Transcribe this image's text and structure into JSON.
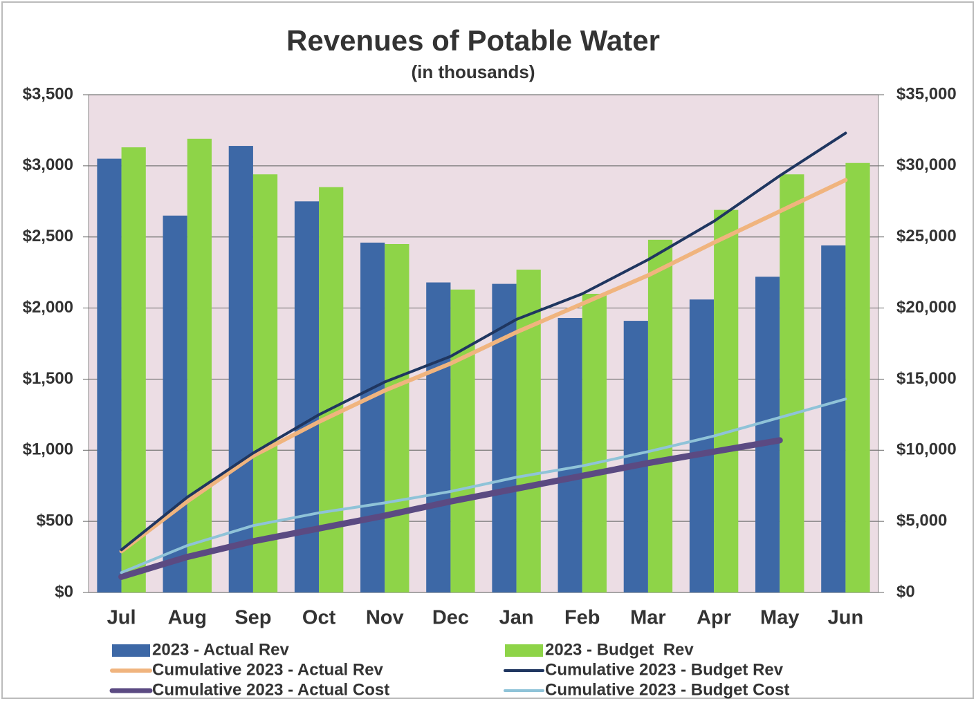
{
  "chart_data": {
    "type": "bar-line",
    "title": "Revenues of Potable Water",
    "subtitle": "(in thousands)",
    "categories": [
      "Jul",
      "Aug",
      "Sep",
      "Oct",
      "Nov",
      "Dec",
      "Jan",
      "Feb",
      "Mar",
      "Apr",
      "May",
      "Jun"
    ],
    "series": [
      {
        "name": "2023 - Actual Rev",
        "type": "bar",
        "color": "#3d68a6",
        "values": [
          3050,
          2650,
          3140,
          2750,
          2460,
          2180,
          2170,
          1930,
          1910,
          2060,
          2220,
          2440
        ]
      },
      {
        "name": "2023 - Budget  Rev",
        "type": "bar",
        "color": "#8ed448",
        "values": [
          3130,
          3190,
          2940,
          2850,
          2450,
          2130,
          2270,
          2100,
          2480,
          2690,
          2940,
          3020
        ]
      },
      {
        "name": "Cumulative 2023 - Actual Rev",
        "type": "line",
        "axis": "y2",
        "color": "#f0b47e",
        "width": 6,
        "values": [
          2900,
          6400,
          9600,
          12000,
          14200,
          16100,
          18300,
          20300,
          22300,
          24600,
          26800,
          29000
        ]
      },
      {
        "name": "Cumulative 2023 - Budget Rev",
        "type": "line",
        "axis": "y2",
        "color": "#1f3660",
        "width": 4,
        "values": [
          3000,
          6700,
          9800,
          12500,
          14800,
          16600,
          19200,
          21000,
          23400,
          26100,
          29300,
          32300
        ]
      },
      {
        "name": "Cumulative 2023 - Actual Cost",
        "type": "line",
        "axis": "y2",
        "color": "#5b4a82",
        "width": 9,
        "values": [
          1100,
          2500,
          3600,
          4500,
          5400,
          6400,
          7300,
          8200,
          9100,
          9900,
          10700,
          null
        ]
      },
      {
        "name": "Cumulative 2023 - Budget Cost",
        "type": "line",
        "axis": "y2",
        "color": "#8fc3d8",
        "width": 4,
        "values": [
          1400,
          3300,
          4700,
          5600,
          6300,
          7100,
          8100,
          8900,
          9900,
          11000,
          12300,
          13600
        ]
      }
    ],
    "ylim": [
      0,
      3500
    ],
    "yticks": [
      {
        "value": 0,
        "label": "$0"
      },
      {
        "value": 500,
        "label": "$500"
      },
      {
        "value": 1000,
        "label": "$1,000"
      },
      {
        "value": 1500,
        "label": "$1,500"
      },
      {
        "value": 2000,
        "label": "$2,000"
      },
      {
        "value": 2500,
        "label": "$2,500"
      },
      {
        "value": 3000,
        "label": "$3,000"
      },
      {
        "value": 3500,
        "label": "$3,500"
      }
    ],
    "y2lim": [
      0,
      35000
    ],
    "y2ticks": [
      {
        "value": 0,
        "label": "$0"
      },
      {
        "value": 5000,
        "label": "$5,000"
      },
      {
        "value": 10000,
        "label": "$10,000"
      },
      {
        "value": 15000,
        "label": "$15,000"
      },
      {
        "value": 20000,
        "label": "$20,000"
      },
      {
        "value": 25000,
        "label": "$25,000"
      },
      {
        "value": 30000,
        "label": "$30,000"
      },
      {
        "value": 35000,
        "label": "$35,000"
      }
    ],
    "grid": true
  }
}
